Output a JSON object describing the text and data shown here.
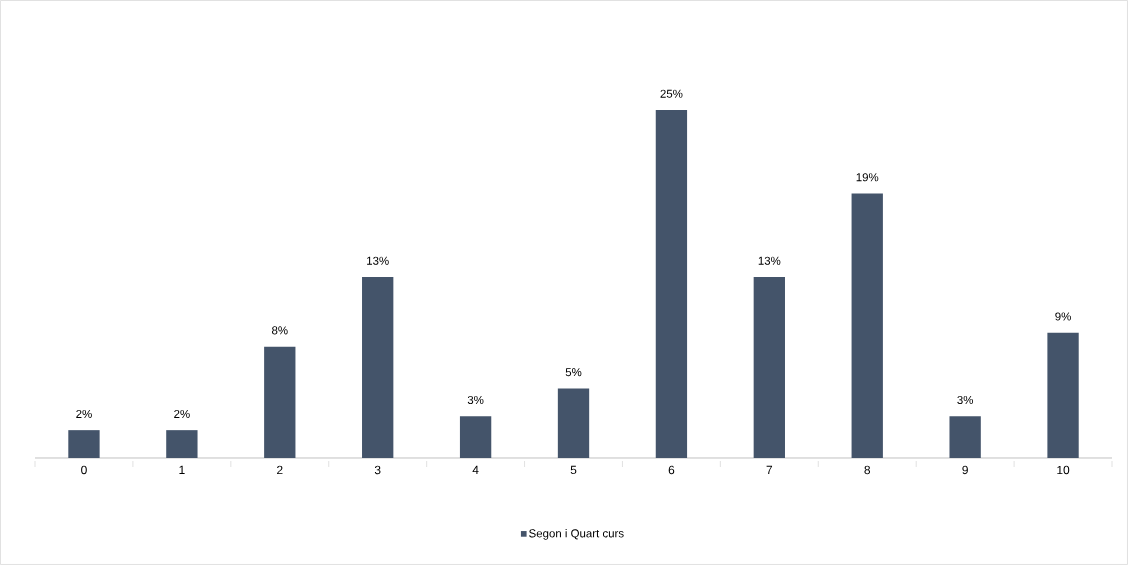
{
  "chart_data": {
    "type": "bar",
    "categories": [
      "0",
      "1",
      "2",
      "3",
      "4",
      "5",
      "6",
      "7",
      "8",
      "9",
      "10"
    ],
    "series": [
      {
        "name": "Segon i Quart curs",
        "color": "#44546a",
        "values": [
          2,
          2,
          8,
          13,
          3,
          5,
          25,
          13,
          19,
          3,
          9
        ],
        "value_labels": [
          "2%",
          "2%",
          "8%",
          "13%",
          "3%",
          "5%",
          "25%",
          "13%",
          "19%",
          "3%",
          "9%"
        ]
      }
    ],
    "legend": "bottom"
  }
}
